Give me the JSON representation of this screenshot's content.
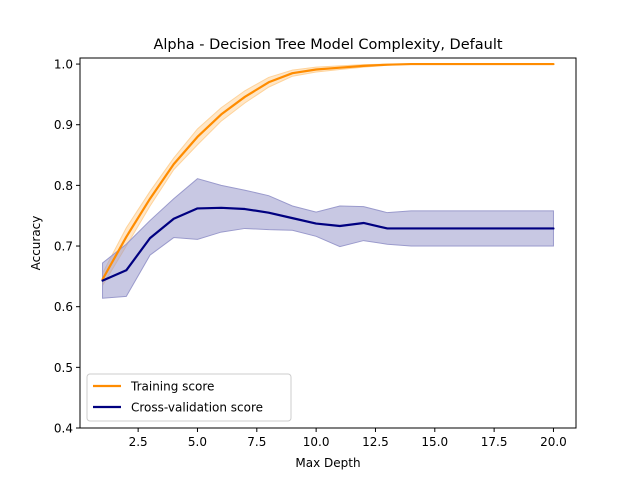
{
  "chart_data": {
    "type": "line",
    "title": "Alpha - Decision Tree Model Complexity, Default",
    "xlabel": "Max Depth",
    "ylabel": "Accuracy",
    "xlim": [
      0.05,
      20.95
    ],
    "ylim": [
      0.4,
      1.01
    ],
    "x_ticks": [
      2.5,
      5.0,
      7.5,
      10.0,
      12.5,
      15.0,
      17.5,
      20.0
    ],
    "x_tick_labels": [
      "2.5",
      "5.0",
      "7.5",
      "10.0",
      "12.5",
      "15.0",
      "17.5",
      "20.0"
    ],
    "y_ticks": [
      0.4,
      0.5,
      0.6,
      0.7,
      0.8,
      0.9,
      1.0
    ],
    "y_tick_labels": [
      "0.4",
      "0.5",
      "0.6",
      "0.7",
      "0.8",
      "0.9",
      "1.0"
    ],
    "grid": false,
    "legend_position": "lower-left",
    "x": [
      1,
      2,
      3,
      4,
      5,
      6,
      7,
      8,
      9,
      10,
      11,
      12,
      13,
      14,
      15,
      16,
      17,
      18,
      19,
      20
    ],
    "series": [
      {
        "name": "Training score",
        "color": "#ff8c00",
        "values": [
          0.645,
          0.715,
          0.778,
          0.835,
          0.88,
          0.917,
          0.946,
          0.97,
          0.985,
          0.991,
          0.994,
          0.997,
          0.999,
          1.0,
          1.0,
          1.0,
          1.0,
          1.0,
          1.0,
          1.0
        ],
        "upper": [
          0.655,
          0.73,
          0.79,
          0.845,
          0.893,
          0.928,
          0.956,
          0.978,
          0.99,
          0.995,
          0.997,
          0.999,
          1.0,
          1.0,
          1.0,
          1.0,
          1.0,
          1.0,
          1.0,
          1.0
        ],
        "lower": [
          0.635,
          0.7,
          0.766,
          0.826,
          0.867,
          0.906,
          0.936,
          0.962,
          0.98,
          0.987,
          0.991,
          0.995,
          0.998,
          1.0,
          1.0,
          1.0,
          1.0,
          1.0,
          1.0,
          1.0
        ],
        "band_color": "#ffd39a"
      },
      {
        "name": "Cross-validation score",
        "color": "#000080",
        "values": [
          0.643,
          0.66,
          0.713,
          0.745,
          0.762,
          0.763,
          0.761,
          0.755,
          0.746,
          0.737,
          0.733,
          0.738,
          0.729,
          0.729,
          0.729,
          0.729,
          0.729,
          0.729,
          0.729,
          0.729
        ],
        "upper": [
          0.672,
          0.703,
          0.742,
          0.778,
          0.811,
          0.8,
          0.792,
          0.783,
          0.766,
          0.756,
          0.766,
          0.765,
          0.755,
          0.758,
          0.758,
          0.758,
          0.758,
          0.758,
          0.758,
          0.758
        ],
        "lower": [
          0.614,
          0.617,
          0.685,
          0.714,
          0.711,
          0.723,
          0.729,
          0.727,
          0.726,
          0.716,
          0.699,
          0.709,
          0.703,
          0.7,
          0.7,
          0.7,
          0.7,
          0.7,
          0.7,
          0.7
        ],
        "band_color": "#9a9acc"
      }
    ]
  }
}
